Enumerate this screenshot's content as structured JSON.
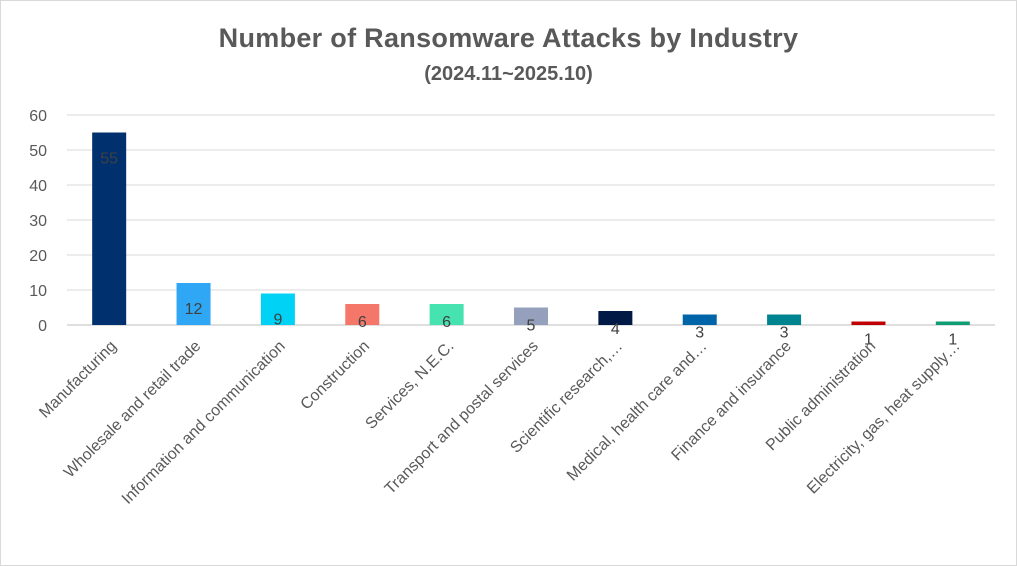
{
  "chart_data": {
    "type": "bar",
    "title": "Number of Ransomware Attacks by Industry",
    "subtitle": "(2024.11~2025.10)",
    "xlabel": "",
    "ylabel": "",
    "ylim": [
      0,
      60
    ],
    "yticks": [
      0,
      10,
      20,
      30,
      40,
      50,
      60
    ],
    "grid": true,
    "categories": [
      "Manufacturing",
      "Wholesale and retail trade",
      "Information and communication",
      "Construction",
      "Services, N.E.C.",
      "Transport and postal services",
      "Scientific research,…",
      "Medical, health care and…",
      "Finance and insurance",
      "Public administration",
      "Electricity, gas, heat supply…"
    ],
    "values": [
      55,
      12,
      9,
      6,
      6,
      5,
      4,
      3,
      3,
      1,
      1
    ],
    "colors": [
      "#00306e",
      "#2fa7f5",
      "#00d2f5",
      "#f5776a",
      "#46e3b0",
      "#95a0bd",
      "#001a45",
      "#0064a8",
      "#008490",
      "#c00000",
      "#0f9e73"
    ]
  }
}
